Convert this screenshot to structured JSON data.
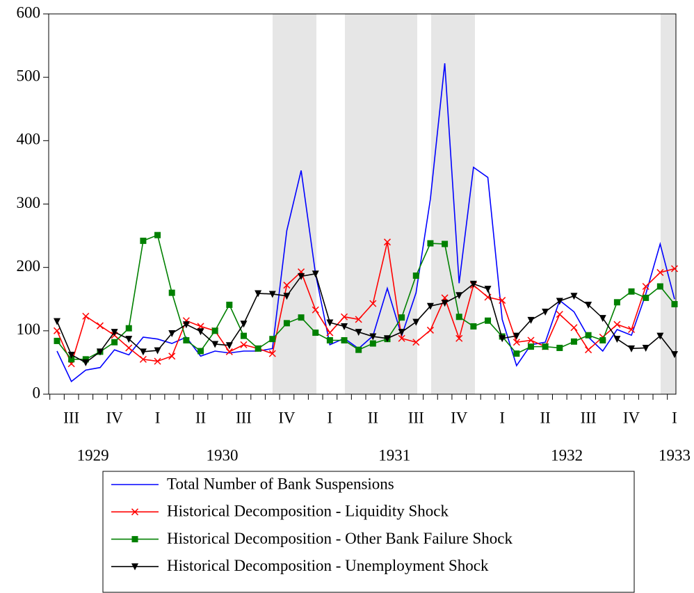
{
  "chart_data": {
    "type": "line",
    "categories": [
      null,
      "III",
      null,
      null,
      "IV",
      null,
      null,
      "I",
      null,
      null,
      "II",
      null,
      null,
      "III",
      null,
      null,
      "IV",
      null,
      null,
      "I",
      null,
      null,
      "II",
      null,
      null,
      "III",
      null,
      null,
      "IV",
      null,
      null,
      "I",
      null,
      null,
      "II",
      null,
      null,
      "III",
      null,
      null,
      "IV",
      null,
      null,
      "I"
    ],
    "year_labels": [
      "1929",
      "1930",
      "1931",
      "1932",
      "1933"
    ],
    "ylim": [
      0,
      600
    ],
    "yticks": [
      0,
      100,
      200,
      300,
      400,
      500,
      600
    ],
    "legend": "bottom",
    "series": [
      {
        "name": "Total Number of Bank Suspensions",
        "color": "#0000ff",
        "marker": "none",
        "values": [
          68,
          20,
          38,
          42,
          70,
          62,
          90,
          87,
          80,
          90,
          60,
          68,
          65,
          68,
          68,
          72,
          258,
          353,
          190,
          78,
          88,
          72,
          92,
          167,
          92,
          160,
          308,
          522,
          175,
          358,
          342,
          118,
          45,
          78,
          82,
          148,
          130,
          90,
          68,
          102,
          93,
          158,
          237,
          150
        ]
      },
      {
        "name": "Historical Decomposition - Liquidity Shock",
        "color": "#ff0000",
        "marker": "x",
        "values": [
          100,
          48,
          123,
          108,
          93,
          73,
          55,
          52,
          60,
          116,
          107,
          100,
          67,
          78,
          72,
          64,
          172,
          193,
          133,
          97,
          122,
          118,
          143,
          240,
          88,
          82,
          101,
          152,
          88,
          172,
          153,
          148,
          82,
          85,
          75,
          126,
          105,
          70,
          90,
          110,
          102,
          170,
          192,
          198
        ]
      },
      {
        "name": "Historical Decomposition - Other Bank Failure Shock",
        "color": "#008000",
        "marker": "square",
        "values": [
          84,
          55,
          55,
          67,
          82,
          104,
          242,
          251,
          160,
          85,
          68,
          100,
          141,
          92,
          72,
          87,
          112,
          121,
          97,
          85,
          85,
          70,
          80,
          87,
          121,
          187,
          238,
          237,
          122,
          107,
          116,
          91,
          64,
          75,
          75,
          73,
          83,
          93,
          85,
          145,
          162,
          152,
          170,
          142
        ]
      },
      {
        "name": "Historical Decomposition - Unemployment Shock",
        "color": "#000000",
        "marker": "triangle-down",
        "values": [
          115,
          62,
          50,
          67,
          98,
          87,
          67,
          69,
          96,
          110,
          99,
          79,
          77,
          111,
          159,
          158,
          155,
          186,
          190,
          113,
          107,
          98,
          91,
          88,
          98,
          114,
          139,
          144,
          156,
          174,
          166,
          88,
          92,
          117,
          130,
          147,
          155,
          141,
          120,
          87,
          72,
          73,
          92,
          63
        ]
      }
    ]
  }
}
